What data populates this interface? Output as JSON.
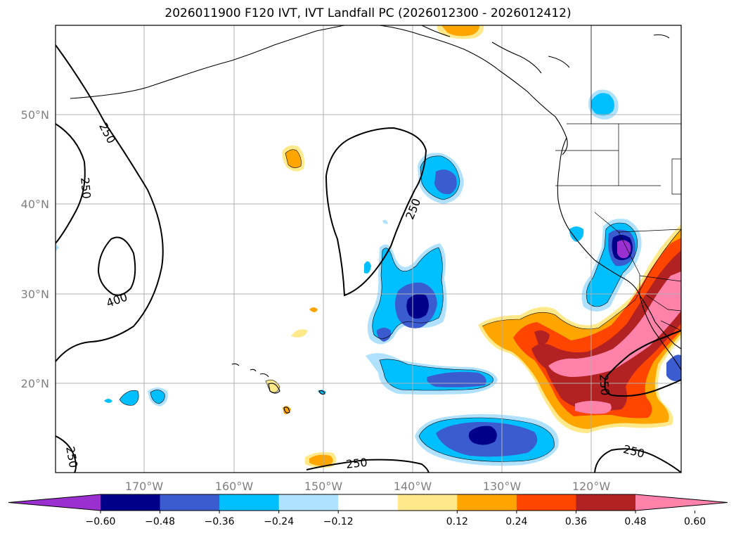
{
  "title": "2026011900 F120 IVT, IVT Landfall PC (2026012300 - 2026012412)",
  "latitude_labels": [
    "50°N",
    "40°N",
    "30°N",
    "20°N"
  ],
  "longitude_labels": [
    "170°W",
    "160°W",
    "150°W",
    "140°W",
    "130°W",
    "120°W"
  ],
  "contour_labels": [
    "250",
    "250",
    "400",
    "250",
    "250",
    "250",
    "250",
    "250"
  ],
  "colorbar": {
    "ticks": [
      "−0.60",
      "−0.48",
      "−0.36",
      "−0.24",
      "−0.12",
      "0.12",
      "0.24",
      "0.36",
      "0.48",
      "0.60"
    ],
    "colors": [
      "#9b30d0",
      "#00008b",
      "#3b5bd0",
      "#00bfff",
      "#b0e2ff",
      "#ffffff",
      "#ffe98a",
      "#ffa500",
      "#ff4500",
      "#b22222",
      "#ff82ab"
    ]
  },
  "colors": {
    "land_outline": "#000000",
    "grid": "#b0b0b0",
    "neg_light": "#b0e2ff",
    "neg_mid": "#00bfff",
    "neg_blue": "#3b5bd0",
    "neg_navy": "#00008b",
    "neg_purple": "#9b30d0",
    "pos_yellow": "#ffe98a",
    "pos_orange": "#ffa500",
    "pos_red": "#ff4500",
    "pos_darkred": "#b22222",
    "pos_pink": "#ff82ab"
  }
}
